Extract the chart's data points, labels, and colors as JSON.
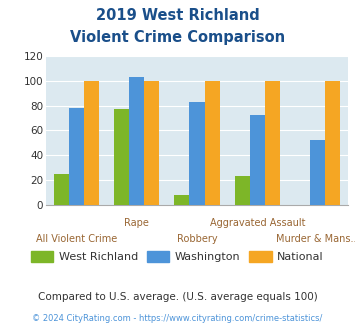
{
  "title_line1": "2019 West Richland",
  "title_line2": "Violent Crime Comparison",
  "categories": [
    "All Violent Crime",
    "Rape",
    "Robbery",
    "Aggravated Assault",
    "Murder & Mans..."
  ],
  "west_richland": [
    25,
    77,
    8,
    23,
    0
  ],
  "washington": [
    78,
    103,
    83,
    72,
    52
  ],
  "national": [
    100,
    100,
    100,
    100,
    100
  ],
  "bar_colors": {
    "west_richland": "#7db628",
    "washington": "#4d94d9",
    "national": "#f5a623"
  },
  "ylim": [
    0,
    120
  ],
  "yticks": [
    0,
    20,
    40,
    60,
    80,
    100,
    120
  ],
  "bg_color": "#dce9f0",
  "title_color": "#1a4f8a",
  "top_label_color": "#996633",
  "bot_label_color": "#996633",
  "legend_labels": [
    "West Richland",
    "Washington",
    "National"
  ],
  "legend_text_color": "#333333",
  "footnote1": "Compared to U.S. average. (U.S. average equals 100)",
  "footnote2": "© 2024 CityRating.com - https://www.cityrating.com/crime-statistics/",
  "footnote1_color": "#333333",
  "footnote2_color": "#4d94d9"
}
